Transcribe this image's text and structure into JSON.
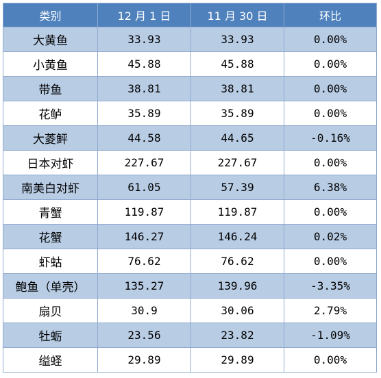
{
  "table": {
    "headers": [
      "类别",
      "12 月 1 日",
      "11 月 30 日",
      "环比"
    ],
    "rows": [
      [
        "大黄鱼",
        "33.93",
        "33.93",
        "0.00%"
      ],
      [
        "小黄鱼",
        "45.88",
        "45.88",
        "0.00%"
      ],
      [
        "带鱼",
        "38.81",
        "38.81",
        "0.00%"
      ],
      [
        "花鲈",
        "35.89",
        "35.89",
        "0.00%"
      ],
      [
        "大菱鲆",
        "44.58",
        "44.65",
        "-0.16%"
      ],
      [
        "日本对虾",
        "227.67",
        "227.67",
        "0.00%"
      ],
      [
        "南美白对虾",
        "61.05",
        "57.39",
        "6.38%"
      ],
      [
        "青蟹",
        "119.87",
        "119.87",
        "0.00%"
      ],
      [
        "花蟹",
        "146.27",
        "146.24",
        "0.02%"
      ],
      [
        "虾蛄",
        "76.62",
        "76.62",
        "0.00%"
      ],
      [
        "鲍鱼（单壳）",
        "135.27",
        "139.96",
        "-3.35%"
      ],
      [
        "扇贝",
        "30.9",
        "30.06",
        "2.79%"
      ],
      [
        "牡蛎",
        "23.56",
        "23.82",
        "-1.09%"
      ],
      [
        "缢蛏",
        "29.89",
        "29.89",
        "0.00%"
      ]
    ]
  },
  "colors": {
    "header_bg": "#4f81bd",
    "header_text": "#ffffff",
    "band_bg": "#b8cce4",
    "border": "#8fa9cf"
  }
}
